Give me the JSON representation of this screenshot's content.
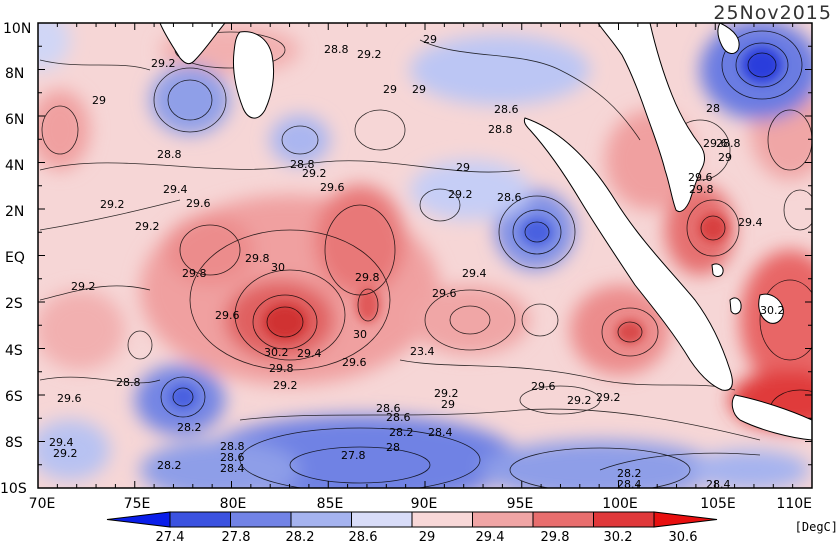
{
  "title": "25Nov2015",
  "unit": "[DegC]",
  "y_ticks": [
    "10N",
    "8N",
    "6N",
    "4N",
    "2N",
    "EQ",
    "2S",
    "4S",
    "6S",
    "8S",
    "10S"
  ],
  "x_ticks": [
    "70E",
    "75E",
    "80E",
    "85E",
    "90E",
    "95E",
    "100E",
    "105E",
    "110E"
  ],
  "colorbar": {
    "labels": [
      "27.4",
      "27.8",
      "28.2",
      "28.6",
      "29",
      "29.4",
      "29.8",
      "30.2",
      "30.6"
    ],
    "colors": [
      "#0a1eea",
      "#3b52e0",
      "#7283e6",
      "#a5b3ef",
      "#d8dcf8",
      "#f8d8d8",
      "#f0a5a5",
      "#e86e6e",
      "#e0383a",
      "#e81010"
    ]
  },
  "contour_labels": [
    {
      "text": "28.8"
    },
    {
      "text": "29.2"
    },
    {
      "text": "29"
    },
    {
      "text": "29.2"
    },
    {
      "text": "29"
    },
    {
      "text": "29"
    },
    {
      "text": "28.6"
    },
    {
      "text": "28.8"
    },
    {
      "text": "29"
    },
    {
      "text": "28.8"
    },
    {
      "text": "28.8"
    },
    {
      "text": "29.2"
    },
    {
      "text": "29"
    },
    {
      "text": "29.4"
    },
    {
      "text": "29.2"
    },
    {
      "text": "29.6"
    },
    {
      "text": "29.6"
    },
    {
      "text": "29.2"
    },
    {
      "text": "28.6"
    },
    {
      "text": "29.2"
    },
    {
      "text": "29.8"
    },
    {
      "text": "30"
    },
    {
      "text": "29.8"
    },
    {
      "text": "29.4"
    },
    {
      "text": "29.2"
    },
    {
      "text": "29.8"
    },
    {
      "text": "29.6"
    },
    {
      "text": "29.6"
    },
    {
      "text": "30"
    },
    {
      "text": "30.2"
    },
    {
      "text": "29.4"
    },
    {
      "text": "29.8"
    },
    {
      "text": "29.6"
    },
    {
      "text": "29.2"
    },
    {
      "text": "23.4"
    },
    {
      "text": "29.6"
    },
    {
      "text": "28.8"
    },
    {
      "text": "29.2"
    },
    {
      "text": "29"
    },
    {
      "text": "29.6"
    },
    {
      "text": "29.2"
    },
    {
      "text": "28.2"
    },
    {
      "text": "28.6"
    },
    {
      "text": "28.6"
    },
    {
      "text": "28.2"
    },
    {
      "text": "28.4"
    },
    {
      "text": "28.8"
    },
    {
      "text": "28.6"
    },
    {
      "text": "28.4"
    },
    {
      "text": "27.8"
    },
    {
      "text": "28"
    },
    {
      "text": "28.2"
    },
    {
      "text": "29.4"
    },
    {
      "text": "29.2"
    },
    {
      "text": "28.2"
    },
    {
      "text": "28.4"
    },
    {
      "text": "28"
    },
    {
      "text": "29.6"
    },
    {
      "text": "29.8"
    },
    {
      "text": "29.6"
    },
    {
      "text": "29.4"
    },
    {
      "text": "30.2"
    },
    {
      "text": "28.4"
    },
    {
      "text": "29.2"
    },
    {
      "text": "29"
    },
    {
      "text": "28.8"
    }
  ]
}
